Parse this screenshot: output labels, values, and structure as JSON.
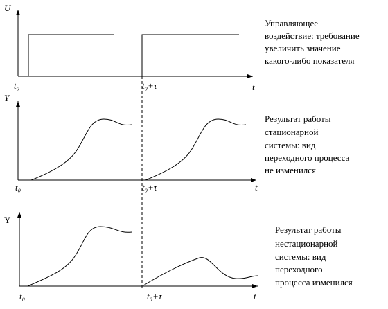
{
  "panels": [
    {
      "axis_label": "U",
      "t_start": "t₀",
      "t_shift": "t₀+τ",
      "t_axis": "t",
      "description": [
        "Управляющее",
        "воздействие: требование",
        "увеличить значение",
        "какого-либо показателя"
      ]
    },
    {
      "axis_label": "Y",
      "t_start": "t₀",
      "t_shift": "t₀+τ",
      "t_axis": "t",
      "description": [
        "Результат работы",
        "стационарной",
        "системы: вид",
        "переходного процесса",
        "не изменился"
      ]
    },
    {
      "axis_label": "Y",
      "t_start": "t₀",
      "t_shift": "t₀+τ",
      "t_axis": "t",
      "description": [
        "Результат работы",
        "нестационарной",
        "системы: вид",
        "переходного",
        "процесса изменился"
      ]
    }
  ]
}
